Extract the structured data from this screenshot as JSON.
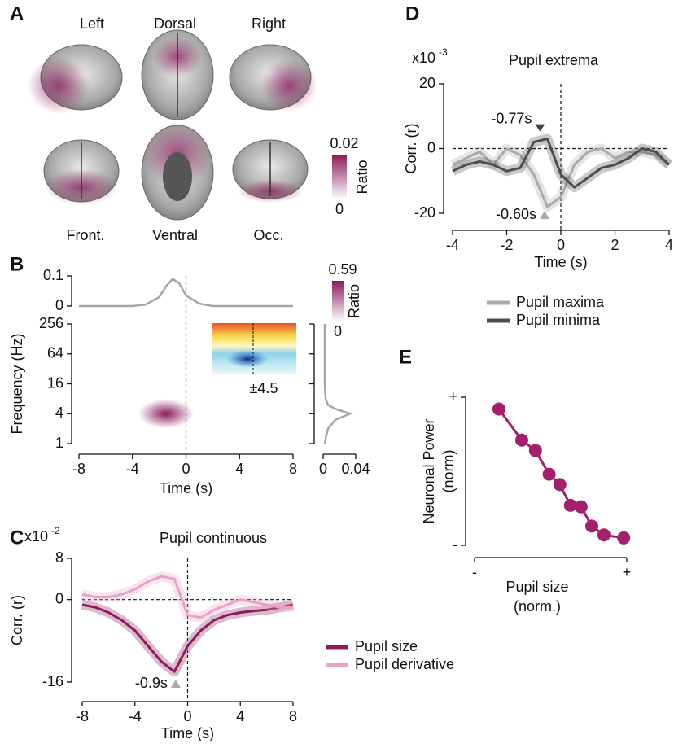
{
  "chart_data": [
    {
      "panel": "A",
      "type": "brain-maps",
      "views": [
        "Left",
        "Dorsal",
        "Right",
        "Front.",
        "Ventral",
        "Occ."
      ],
      "colorbar": {
        "label": "Ratio",
        "lim": [
          0,
          0.02
        ],
        "ticks": [
          0,
          0.02
        ],
        "colormap": [
          "#ffffff",
          "#8b1a5c"
        ]
      }
    },
    {
      "panel": "B",
      "type": "heatmap",
      "x_label": "Time (s)",
      "y_label": "Frequency (Hz)",
      "xlim": [
        -8,
        8
      ],
      "xticks": [
        -8,
        -4,
        0,
        4,
        8
      ],
      "ylim": [
        1,
        256
      ],
      "yticks": [
        1,
        4,
        16,
        64,
        256
      ],
      "log_y": true,
      "peak": {
        "time": -1.5,
        "frequency": 4
      },
      "colorbar": {
        "label": "Ratio",
        "lim": [
          0,
          0.59
        ],
        "ticks": [
          0,
          0.59
        ],
        "colormap": [
          "#ffffff",
          "#8b1a5c"
        ]
      },
      "inset_label": "±4.5",
      "color": "#a6a6a6",
      "time_marginal": {
        "x": [
          -8,
          -6,
          -4,
          -3,
          -2,
          -1.5,
          -1,
          -0.5,
          0,
          1,
          2,
          4,
          6,
          8
        ],
        "values": [
          0,
          0,
          0,
          0.005,
          0.03,
          0.065,
          0.09,
          0.075,
          0.035,
          0.008,
          0,
          0,
          0,
          0
        ],
        "ylim": [
          0,
          0.1
        ],
        "yticks": [
          0,
          0.1
        ]
      },
      "frequency_marginal": {
        "y": [
          1,
          1.5,
          2,
          3,
          4,
          5,
          6,
          8,
          16,
          64,
          256
        ],
        "values": [
          0.002,
          0.004,
          0.006,
          0.015,
          0.033,
          0.015,
          0.006,
          0.003,
          0.002,
          0.002,
          0.002
        ],
        "xlim": [
          0,
          0.04
        ],
        "xticks": [
          0,
          0.04
        ]
      }
    },
    {
      "panel": "C",
      "type": "line",
      "title": "Pupil continuous",
      "y_scale": {
        "base": "x10",
        "exponent": "-2"
      },
      "x_label": "Time (s)",
      "y_label": "Corr. (r)",
      "x": [
        -8,
        -7,
        -6,
        -5,
        -4,
        -3,
        -2,
        -1,
        0,
        1,
        2,
        3,
        4,
        5,
        6,
        7,
        8
      ],
      "xlim": [
        -8,
        8
      ],
      "xticks": [
        -8,
        -4,
        0,
        4,
        8
      ],
      "ylim": [
        -16,
        8
      ],
      "yticks": [
        -16,
        0,
        8
      ],
      "series": [
        {
          "name": "Pupil size",
          "color": "#8c1c5c",
          "values": [
            -1,
            -1.5,
            -2.5,
            -4,
            -6,
            -9,
            -12,
            -14,
            -9,
            -6,
            -4,
            -3,
            -2.5,
            -2.2,
            -2,
            -1.5,
            -1
          ]
        },
        {
          "name": "Pupil derivative",
          "color": "#e9a1c8",
          "values": [
            1,
            0.5,
            0.5,
            1,
            2,
            3.5,
            4.5,
            4,
            -3,
            -3.5,
            -2,
            -1,
            0,
            -0.5,
            -1,
            -1.5,
            -1.5
          ]
        }
      ],
      "annotations": [
        {
          "text": "-0.9s",
          "x": -0.9,
          "y": -16
        }
      ]
    },
    {
      "panel": "D",
      "type": "line",
      "title": "Pupil extrema",
      "y_scale": {
        "base": "x10",
        "exponent": "-3"
      },
      "x_label": "Time (s)",
      "y_label": "Corr. (r)",
      "x": [
        -4,
        -3.5,
        -3,
        -2.5,
        -2,
        -1.5,
        -1,
        -0.5,
        0,
        0.5,
        1,
        1.5,
        2,
        2.5,
        3,
        3.5,
        4
      ],
      "xlim": [
        -4,
        4
      ],
      "xticks": [
        -4,
        -2,
        0,
        2,
        4
      ],
      "ylim": [
        -20,
        20
      ],
      "yticks": [
        -20,
        0,
        20
      ],
      "series": [
        {
          "name": "Pupil maxima",
          "color": "#aaaaaa",
          "values": [
            -5,
            -3,
            -1,
            -5,
            0,
            -2,
            -8,
            -18,
            -15,
            -5,
            -1,
            0,
            -3,
            -1,
            -1,
            -2,
            -5
          ]
        },
        {
          "name": "Pupil minima",
          "color": "#4d4d4d",
          "values": [
            -7,
            -5,
            -4,
            -5,
            -7,
            -6,
            2,
            3,
            -8,
            -12,
            -9,
            -6,
            -5,
            -3,
            0,
            -1,
            -5
          ]
        }
      ],
      "annotations": [
        {
          "text": "-0.77s",
          "x": -0.77,
          "y": 6
        },
        {
          "text": "-0.60s",
          "x": -0.6,
          "y": -20
        }
      ]
    },
    {
      "panel": "E",
      "type": "line",
      "markers": true,
      "x_label": "Pupil size",
      "x_label_unit": "(norm.)",
      "y_label": "Neuronal Power",
      "y_label_unit": "(norm)",
      "x": [
        0.16,
        0.31,
        0.4,
        0.49,
        0.56,
        0.63,
        0.7,
        0.77,
        0.85,
        0.98
      ],
      "xlim": [
        0,
        1
      ],
      "xticks": [
        {
          "value": 0,
          "label": "-"
        },
        {
          "value": 1,
          "label": "+"
        }
      ],
      "ylim": [
        0,
        1
      ],
      "yticks": [
        {
          "value": 0,
          "label": "-"
        },
        {
          "value": 1,
          "label": "+"
        }
      ],
      "series": [
        {
          "color": "#a3206a",
          "values": [
            0.92,
            0.71,
            0.64,
            0.48,
            0.41,
            0.27,
            0.26,
            0.13,
            0.07,
            0.05
          ]
        }
      ]
    }
  ]
}
